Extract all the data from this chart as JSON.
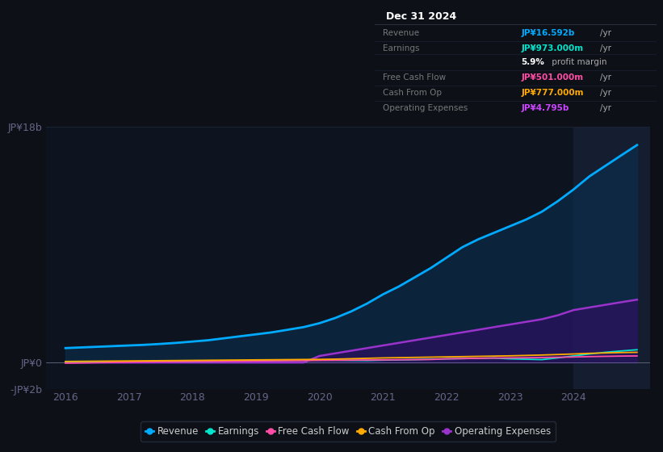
{
  "background_color": "#0d1117",
  "plot_bg_color": "#0d1420",
  "title": "Dec 31 2024",
  "y_label_top": "JP¥18b",
  "y_label_zero": "JP¥0",
  "y_label_neg": "-JP¥2b",
  "x_ticks": [
    2016,
    2017,
    2018,
    2019,
    2020,
    2021,
    2022,
    2023,
    2024
  ],
  "years": [
    2016,
    2016.25,
    2016.5,
    2016.75,
    2017,
    2017.25,
    2017.5,
    2017.75,
    2018,
    2018.25,
    2018.5,
    2018.75,
    2019,
    2019.25,
    2019.5,
    2019.75,
    2020,
    2020.25,
    2020.5,
    2020.75,
    2021,
    2021.25,
    2021.5,
    2021.75,
    2022,
    2022.25,
    2022.5,
    2022.75,
    2023,
    2023.25,
    2023.5,
    2023.75,
    2024,
    2024.25,
    2024.5,
    2024.75,
    2025
  ],
  "revenue": [
    1100,
    1150,
    1200,
    1250,
    1300,
    1350,
    1420,
    1500,
    1600,
    1700,
    1850,
    2000,
    2150,
    2300,
    2500,
    2700,
    3000,
    3400,
    3900,
    4500,
    5200,
    5800,
    6500,
    7200,
    8000,
    8800,
    9400,
    9900,
    10400,
    10900,
    11500,
    12300,
    13200,
    14200,
    15000,
    15800,
    16592
  ],
  "earnings": [
    50,
    55,
    60,
    65,
    70,
    75,
    80,
    90,
    100,
    110,
    120,
    130,
    150,
    160,
    170,
    175,
    180,
    175,
    160,
    150,
    180,
    200,
    220,
    250,
    280,
    300,
    320,
    340,
    280,
    250,
    220,
    350,
    500,
    650,
    780,
    880,
    973
  ],
  "free_cash_flow": [
    -50,
    -30,
    -10,
    10,
    30,
    50,
    60,
    70,
    80,
    90,
    100,
    110,
    120,
    130,
    140,
    150,
    160,
    170,
    180,
    190,
    200,
    210,
    220,
    230,
    280,
    300,
    320,
    340,
    350,
    360,
    380,
    400,
    420,
    450,
    470,
    490,
    501
  ],
  "cash_from_op": [
    80,
    90,
    100,
    110,
    120,
    130,
    140,
    150,
    160,
    170,
    180,
    190,
    200,
    210,
    220,
    230,
    240,
    260,
    290,
    320,
    350,
    370,
    390,
    410,
    430,
    450,
    470,
    490,
    510,
    540,
    570,
    610,
    650,
    700,
    730,
    760,
    777
  ],
  "operating_expenses": [
    0,
    0,
    0,
    0,
    0,
    0,
    0,
    0,
    0,
    0,
    0,
    0,
    0,
    0,
    0,
    0,
    500,
    700,
    900,
    1100,
    1300,
    1500,
    1700,
    1900,
    2100,
    2300,
    2500,
    2700,
    2900,
    3100,
    3300,
    3600,
    4000,
    4200,
    4400,
    4600,
    4795
  ],
  "revenue_color": "#00aaff",
  "earnings_color": "#00e5cc",
  "free_cash_flow_color": "#ff4da6",
  "cash_from_op_color": "#ffaa00",
  "operating_expenses_color": "#9933cc",
  "revenue_fill_color": "#0a3050",
  "opex_fill_color": "#2d1060",
  "info_box": {
    "title": "Dec 31 2024",
    "title_color": "#ffffff",
    "bg_color": "#050a0f",
    "border_color": "#2a3040",
    "rows": [
      {
        "label": "Revenue",
        "value": "JP¥16.592b",
        "unit": "/yr",
        "value_color": "#00aaff",
        "label_color": "#777777"
      },
      {
        "label": "Earnings",
        "value": "JP¥973.000m",
        "unit": "/yr",
        "value_color": "#00e5cc",
        "label_color": "#777777"
      },
      {
        "label": "",
        "value": "5.9%",
        "unit": "profit margin",
        "value_color": "#ffffff",
        "label_color": "#777777"
      },
      {
        "label": "Free Cash Flow",
        "value": "JP¥501.000m",
        "unit": "/yr",
        "value_color": "#ff4da6",
        "label_color": "#777777"
      },
      {
        "label": "Cash From Op",
        "value": "JP¥777.000m",
        "unit": "/yr",
        "value_color": "#ffaa00",
        "label_color": "#777777"
      },
      {
        "label": "Operating Expenses",
        "value": "JP¥4.795b",
        "unit": "/yr",
        "value_color": "#cc44ff",
        "label_color": "#777777"
      }
    ]
  },
  "legend": [
    {
      "label": "Revenue",
      "color": "#00aaff"
    },
    {
      "label": "Earnings",
      "color": "#00e5cc"
    },
    {
      "label": "Free Cash Flow",
      "color": "#ff4da6"
    },
    {
      "label": "Cash From Op",
      "color": "#ffaa00"
    },
    {
      "label": "Operating Expenses",
      "color": "#9933cc"
    }
  ],
  "highlight_x_start": 2024.0,
  "highlight_x_end": 2025.2,
  "highlight_color": "#141e30",
  "ylim": [
    -2000,
    18000
  ],
  "xlim": [
    2015.7,
    2025.2
  ],
  "grid_color": "#1a2235",
  "tick_color": "#666688"
}
